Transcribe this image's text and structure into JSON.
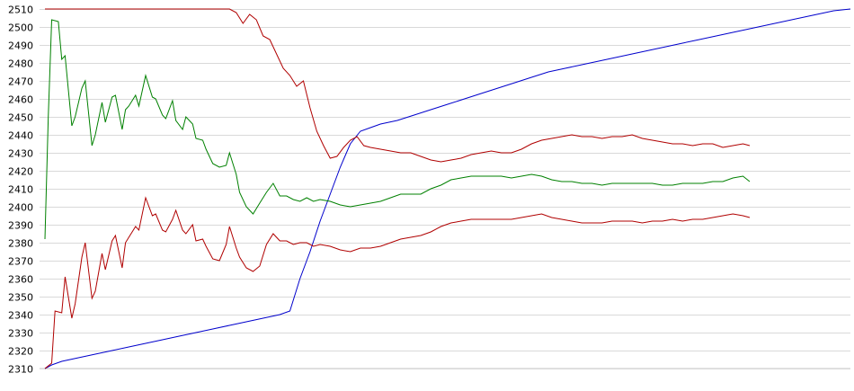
{
  "chart_data": {
    "type": "line",
    "title": "",
    "xlabel": "",
    "ylabel": "",
    "ylim": [
      2310,
      2510
    ],
    "yticks": [
      2310,
      2320,
      2330,
      2340,
      2350,
      2360,
      2370,
      2380,
      2390,
      2400,
      2410,
      2420,
      2430,
      2440,
      2450,
      2460,
      2470,
      2480,
      2490,
      2500,
      2510
    ],
    "grid": true,
    "legend": "none",
    "x_count": 150,
    "series": [
      {
        "color": "#0000cc",
        "points": [
          [
            0,
            2310
          ],
          [
            2,
            2312
          ],
          [
            5,
            2314
          ],
          [
            10,
            2316
          ],
          [
            15,
            2318
          ],
          [
            20,
            2320
          ],
          [
            25,
            2322
          ],
          [
            30,
            2324
          ],
          [
            35,
            2326
          ],
          [
            40,
            2328
          ],
          [
            45,
            2330
          ],
          [
            50,
            2332
          ],
          [
            55,
            2334
          ],
          [
            60,
            2336
          ],
          [
            65,
            2338
          ],
          [
            70,
            2340
          ],
          [
            73,
            2342
          ],
          [
            76,
            2360
          ],
          [
            79,
            2375
          ],
          [
            82,
            2392
          ],
          [
            85,
            2407
          ],
          [
            88,
            2422
          ],
          [
            91,
            2435
          ],
          [
            94,
            2442
          ],
          [
            97,
            2444
          ],
          [
            100,
            2446
          ],
          [
            105,
            2448
          ],
          [
            110,
            2451
          ],
          [
            115,
            2454
          ],
          [
            120,
            2457
          ],
          [
            125,
            2460
          ],
          [
            130,
            2463
          ],
          [
            135,
            2466
          ],
          [
            140,
            2469
          ],
          [
            145,
            2472
          ],
          [
            150,
            2475
          ],
          [
            155,
            2477
          ],
          [
            160,
            2479
          ],
          [
            165,
            2481
          ],
          [
            170,
            2483
          ],
          [
            175,
            2485
          ],
          [
            180,
            2487
          ],
          [
            185,
            2489
          ],
          [
            190,
            2491
          ],
          [
            195,
            2493
          ],
          [
            200,
            2495
          ],
          [
            205,
            2497
          ],
          [
            210,
            2499
          ],
          [
            215,
            2501
          ],
          [
            220,
            2503
          ],
          [
            225,
            2505
          ],
          [
            230,
            2507
          ],
          [
            235,
            2509
          ],
          [
            240,
            2510
          ]
        ]
      },
      {
        "color": "#008000",
        "points": [
          [
            0,
            2382
          ],
          [
            1,
            2450
          ],
          [
            2,
            2504
          ],
          [
            4,
            2503
          ],
          [
            5,
            2482
          ],
          [
            6,
            2484
          ],
          [
            8,
            2445
          ],
          [
            9,
            2450
          ],
          [
            11,
            2466
          ],
          [
            12,
            2470
          ],
          [
            14,
            2434
          ],
          [
            15,
            2440
          ],
          [
            17,
            2458
          ],
          [
            18,
            2447
          ],
          [
            20,
            2461
          ],
          [
            21,
            2462
          ],
          [
            23,
            2443
          ],
          [
            24,
            2454
          ],
          [
            25,
            2456
          ],
          [
            27,
            2462
          ],
          [
            28,
            2456
          ],
          [
            30,
            2473
          ],
          [
            32,
            2461
          ],
          [
            33,
            2460
          ],
          [
            35,
            2451
          ],
          [
            36,
            2449
          ],
          [
            38,
            2459
          ],
          [
            39,
            2448
          ],
          [
            41,
            2443
          ],
          [
            42,
            2450
          ],
          [
            44,
            2446
          ],
          [
            45,
            2438
          ],
          [
            47,
            2437
          ],
          [
            48,
            2432
          ],
          [
            50,
            2424
          ],
          [
            52,
            2422
          ],
          [
            54,
            2423
          ],
          [
            55,
            2430
          ],
          [
            57,
            2418
          ],
          [
            58,
            2408
          ],
          [
            60,
            2400
          ],
          [
            62,
            2396
          ],
          [
            64,
            2402
          ],
          [
            66,
            2408
          ],
          [
            68,
            2413
          ],
          [
            70,
            2406
          ],
          [
            72,
            2406
          ],
          [
            74,
            2404
          ],
          [
            76,
            2403
          ],
          [
            78,
            2405
          ],
          [
            80,
            2403
          ],
          [
            82,
            2404
          ],
          [
            85,
            2403
          ],
          [
            88,
            2401
          ],
          [
            91,
            2400
          ],
          [
            94,
            2401
          ],
          [
            97,
            2402
          ],
          [
            100,
            2403
          ],
          [
            103,
            2405
          ],
          [
            106,
            2407
          ],
          [
            109,
            2407
          ],
          [
            112,
            2407
          ],
          [
            115,
            2410
          ],
          [
            118,
            2412
          ],
          [
            121,
            2415
          ],
          [
            124,
            2416
          ],
          [
            127,
            2417
          ],
          [
            130,
            2417
          ],
          [
            133,
            2417
          ],
          [
            136,
            2417
          ],
          [
            139,
            2416
          ],
          [
            142,
            2417
          ],
          [
            145,
            2418
          ],
          [
            148,
            2417
          ],
          [
            151,
            2415
          ],
          [
            154,
            2414
          ],
          [
            157,
            2414
          ],
          [
            160,
            2413
          ],
          [
            163,
            2413
          ],
          [
            166,
            2412
          ],
          [
            169,
            2413
          ],
          [
            172,
            2413
          ],
          [
            175,
            2413
          ],
          [
            178,
            2413
          ],
          [
            181,
            2413
          ],
          [
            184,
            2412
          ],
          [
            187,
            2412
          ],
          [
            190,
            2413
          ],
          [
            193,
            2413
          ],
          [
            196,
            2413
          ],
          [
            199,
            2414
          ],
          [
            202,
            2414
          ],
          [
            205,
            2416
          ],
          [
            208,
            2417
          ],
          [
            210,
            2414
          ]
        ]
      },
      {
        "color": "#b00000",
        "points": [
          [
            0,
            2510
          ],
          [
            5,
            2510
          ],
          [
            10,
            2510
          ],
          [
            20,
            2510
          ],
          [
            30,
            2510
          ],
          [
            40,
            2510
          ],
          [
            50,
            2510
          ],
          [
            55,
            2510
          ],
          [
            57,
            2508
          ],
          [
            59,
            2502
          ],
          [
            61,
            2507
          ],
          [
            63,
            2504
          ],
          [
            65,
            2495
          ],
          [
            67,
            2493
          ],
          [
            69,
            2485
          ],
          [
            71,
            2477
          ],
          [
            73,
            2473
          ],
          [
            75,
            2467
          ],
          [
            77,
            2470
          ],
          [
            79,
            2455
          ],
          [
            81,
            2442
          ],
          [
            83,
            2434
          ],
          [
            85,
            2427
          ],
          [
            87,
            2428
          ],
          [
            89,
            2433
          ],
          [
            91,
            2437
          ],
          [
            93,
            2439
          ],
          [
            95,
            2434
          ],
          [
            97,
            2433
          ],
          [
            100,
            2432
          ],
          [
            103,
            2431
          ],
          [
            106,
            2430
          ],
          [
            109,
            2430
          ],
          [
            112,
            2428
          ],
          [
            115,
            2426
          ],
          [
            118,
            2425
          ],
          [
            121,
            2426
          ],
          [
            124,
            2427
          ],
          [
            127,
            2429
          ],
          [
            130,
            2430
          ],
          [
            133,
            2431
          ],
          [
            136,
            2430
          ],
          [
            139,
            2430
          ],
          [
            142,
            2432
          ],
          [
            145,
            2435
          ],
          [
            148,
            2437
          ],
          [
            151,
            2438
          ],
          [
            154,
            2439
          ],
          [
            157,
            2440
          ],
          [
            160,
            2439
          ],
          [
            163,
            2439
          ],
          [
            166,
            2438
          ],
          [
            169,
            2439
          ],
          [
            172,
            2439
          ],
          [
            175,
            2440
          ],
          [
            178,
            2438
          ],
          [
            181,
            2437
          ],
          [
            184,
            2436
          ],
          [
            187,
            2435
          ],
          [
            190,
            2435
          ],
          [
            193,
            2434
          ],
          [
            196,
            2435
          ],
          [
            199,
            2435
          ],
          [
            202,
            2433
          ],
          [
            205,
            2434
          ],
          [
            208,
            2435
          ],
          [
            210,
            2434
          ]
        ]
      },
      {
        "color": "#b00000",
        "points": [
          [
            0,
            2310
          ],
          [
            2,
            2313
          ],
          [
            3,
            2342
          ],
          [
            5,
            2341
          ],
          [
            6,
            2361
          ],
          [
            8,
            2338
          ],
          [
            9,
            2346
          ],
          [
            11,
            2372
          ],
          [
            12,
            2380
          ],
          [
            14,
            2349
          ],
          [
            15,
            2353
          ],
          [
            17,
            2374
          ],
          [
            18,
            2365
          ],
          [
            20,
            2381
          ],
          [
            21,
            2384
          ],
          [
            23,
            2366
          ],
          [
            24,
            2380
          ],
          [
            25,
            2383
          ],
          [
            27,
            2389
          ],
          [
            28,
            2387
          ],
          [
            30,
            2405
          ],
          [
            32,
            2395
          ],
          [
            33,
            2396
          ],
          [
            35,
            2387
          ],
          [
            36,
            2386
          ],
          [
            38,
            2393
          ],
          [
            39,
            2398
          ],
          [
            41,
            2387
          ],
          [
            42,
            2385
          ],
          [
            44,
            2390
          ],
          [
            45,
            2381
          ],
          [
            47,
            2382
          ],
          [
            48,
            2378
          ],
          [
            50,
            2371
          ],
          [
            52,
            2370
          ],
          [
            54,
            2379
          ],
          [
            55,
            2389
          ],
          [
            57,
            2377
          ],
          [
            58,
            2372
          ],
          [
            60,
            2366
          ],
          [
            62,
            2364
          ],
          [
            64,
            2367
          ],
          [
            66,
            2379
          ],
          [
            68,
            2385
          ],
          [
            70,
            2381
          ],
          [
            72,
            2381
          ],
          [
            74,
            2379
          ],
          [
            76,
            2380
          ],
          [
            78,
            2380
          ],
          [
            80,
            2378
          ],
          [
            82,
            2379
          ],
          [
            85,
            2378
          ],
          [
            88,
            2376
          ],
          [
            91,
            2375
          ],
          [
            94,
            2377
          ],
          [
            97,
            2377
          ],
          [
            100,
            2378
          ],
          [
            103,
            2380
          ],
          [
            106,
            2382
          ],
          [
            109,
            2383
          ],
          [
            112,
            2384
          ],
          [
            115,
            2386
          ],
          [
            118,
            2389
          ],
          [
            121,
            2391
          ],
          [
            124,
            2392
          ],
          [
            127,
            2393
          ],
          [
            130,
            2393
          ],
          [
            133,
            2393
          ],
          [
            136,
            2393
          ],
          [
            139,
            2393
          ],
          [
            142,
            2394
          ],
          [
            145,
            2395
          ],
          [
            148,
            2396
          ],
          [
            151,
            2394
          ],
          [
            154,
            2393
          ],
          [
            157,
            2392
          ],
          [
            160,
            2391
          ],
          [
            163,
            2391
          ],
          [
            166,
            2391
          ],
          [
            169,
            2392
          ],
          [
            172,
            2392
          ],
          [
            175,
            2392
          ],
          [
            178,
            2391
          ],
          [
            181,
            2392
          ],
          [
            184,
            2392
          ],
          [
            187,
            2393
          ],
          [
            190,
            2392
          ],
          [
            193,
            2393
          ],
          [
            196,
            2393
          ],
          [
            199,
            2394
          ],
          [
            202,
            2395
          ],
          [
            205,
            2396
          ],
          [
            208,
            2395
          ],
          [
            210,
            2394
          ]
        ]
      }
    ]
  }
}
